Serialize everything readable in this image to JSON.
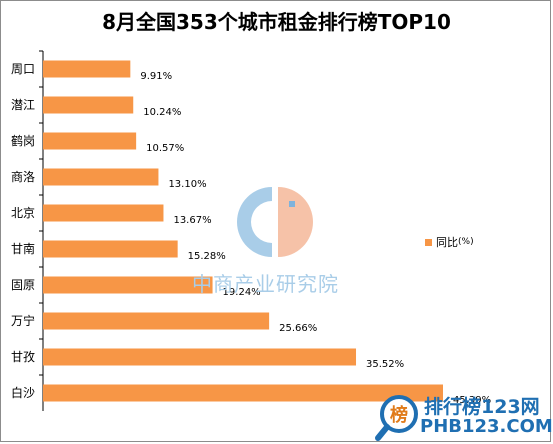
{
  "chart_data": {
    "type": "bar",
    "orientation": "horizontal",
    "title": "8月全国353个城市租金排行榜TOP10",
    "categories": [
      "周口",
      "潜江",
      "鹤岗",
      "商洛",
      "北京",
      "甘南",
      "固原",
      "万宁",
      "甘孜",
      "白沙"
    ],
    "series": [
      {
        "name": "同比(%)",
        "values": [
          9.91,
          10.24,
          10.57,
          13.1,
          13.67,
          15.28,
          19.24,
          25.66,
          35.52,
          45.39
        ],
        "labels": [
          "9.91%",
          "10.24%",
          "10.57%",
          "13.10%",
          "13.67%",
          "15.28%",
          "19.24%",
          "25.66%",
          "35.52%",
          "45.39%"
        ]
      }
    ],
    "xlim": [
      0,
      50
    ],
    "grid": false,
    "legend_position": "right",
    "bar_color": "#f79646"
  },
  "legend": {
    "label": "同比",
    "unit": "(%)"
  },
  "watermark": {
    "text": "中商产业研究院"
  },
  "branding": {
    "name": "排行榜123网",
    "url": "PHB123.COM",
    "badge": "榜"
  },
  "colors": {
    "accent": "#f79646",
    "watermark": "#a9cde8",
    "brand": "#1f6fb2"
  }
}
